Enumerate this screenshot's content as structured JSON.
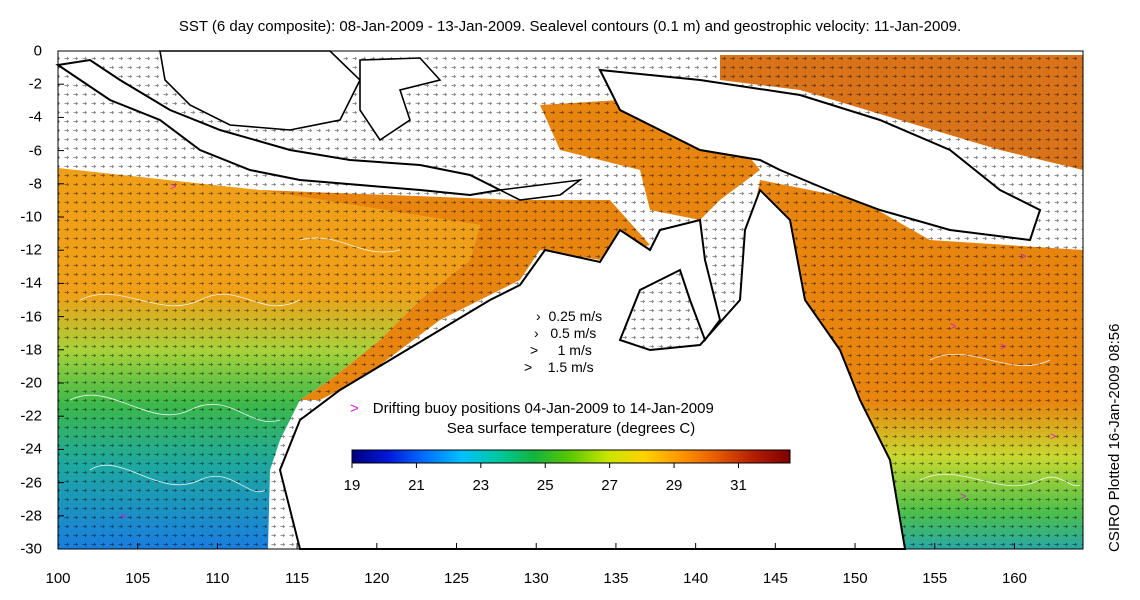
{
  "title": "SST (6 day composite): 08-Jan-2009 - 13-Jan-2009. Sealevel contours (0.1 m) and geostrophic velocity: 11-Jan-2009.",
  "side_note": "CSIRO Plotted 16-Jan-2009 08:56",
  "axes": {
    "x_ticks": [
      "100",
      "105",
      "110",
      "115",
      "120",
      "125",
      "130",
      "135",
      "140",
      "145",
      "150",
      "155",
      "160"
    ],
    "y_ticks": [
      "0",
      "-2",
      "-4",
      "-6",
      "-8",
      "-10",
      "-12",
      "-14",
      "-16",
      "-18",
      "-20",
      "-22",
      "-24",
      "-26",
      "-28",
      "-30"
    ],
    "x_range": [
      100,
      164.3
    ],
    "y_range": [
      -30,
      0
    ]
  },
  "velocity_legend": [
    "0.25 m/s",
    "0.5 m/s",
    "1 m/s",
    "1.5 m/s"
  ],
  "buoy_legend": {
    "marker": ">",
    "label": "Drifting buoy positions 04-Jan-2009 to 14-Jan-2009",
    "color": "#d11fd1"
  },
  "colorbar": {
    "title": "Sea surface temperature (degrees C)",
    "ticks": [
      "19",
      "21",
      "23",
      "25",
      "27",
      "29",
      "31"
    ],
    "range": [
      19,
      32.6
    ],
    "colors": [
      "#00007f",
      "#0019d9",
      "#0070ff",
      "#00c0ff",
      "#00c8a0",
      "#14b43c",
      "#5cc800",
      "#c8e600",
      "#ffd200",
      "#ff9600",
      "#e65a00",
      "#b41e00",
      "#7f0000"
    ]
  },
  "colors": {
    "land": "#ffffff",
    "coast": "#000000",
    "warm_sea": "#e8850f",
    "mid_sea": "#8ccd3c",
    "cool_sea": "#2fa0d8"
  }
}
